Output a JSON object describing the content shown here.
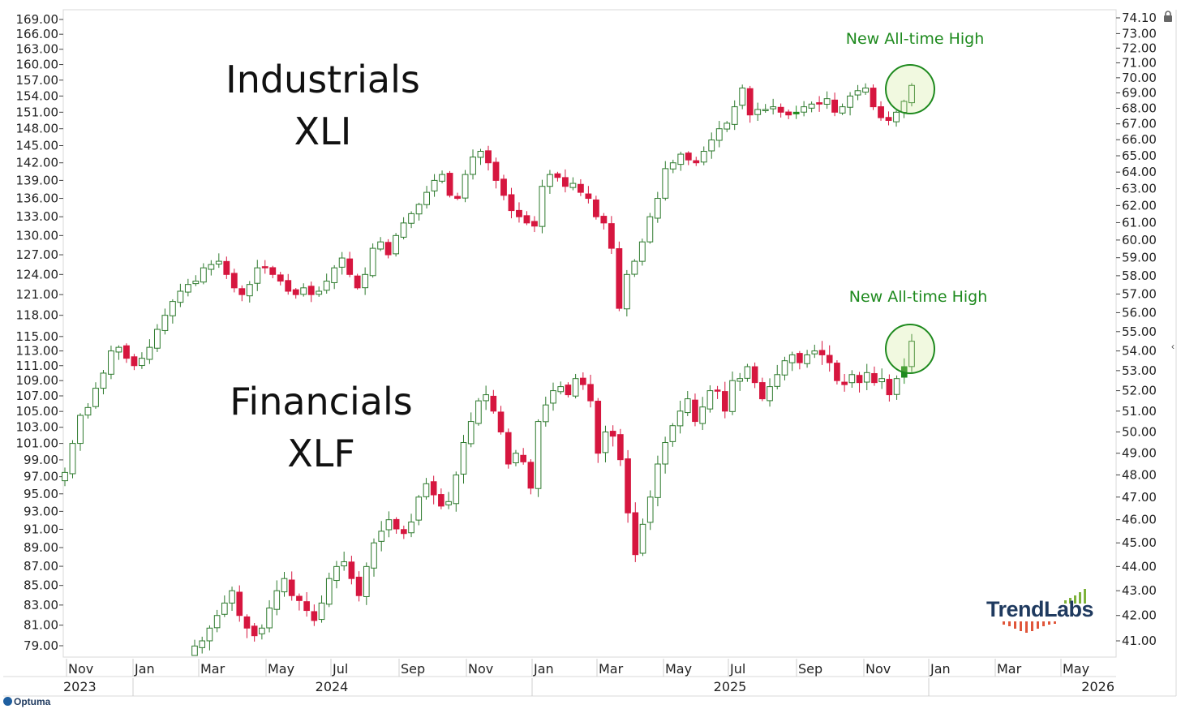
{
  "chart_data": {
    "type": "candlestick",
    "series": [
      {
        "symbol": "XLI",
        "label_lines": [
          "Industrials",
          "XLI"
        ],
        "axis": "left",
        "weekly_close_path": [
          97.5,
          101,
          104.5,
          105.5,
          108,
          110,
          113,
          113.5,
          112,
          111,
          112,
          113.5,
          116,
          118,
          120,
          121.5,
          122.5,
          123,
          125,
          125.5,
          126,
          124,
          122,
          121,
          122.5,
          125,
          125,
          124,
          123,
          121.5,
          121,
          122,
          121,
          121.5,
          123,
          125,
          126.5,
          124,
          122,
          124,
          128,
          129,
          127,
          130,
          132,
          133.5,
          135,
          137,
          139,
          140,
          136.5,
          136,
          140,
          143,
          144,
          142,
          139,
          136.5,
          134,
          133,
          132,
          131.5,
          138,
          140,
          139.5,
          138,
          138.5,
          137,
          136,
          133,
          132,
          128,
          119,
          124,
          126,
          129,
          133,
          136,
          141,
          142,
          143.5,
          142.5,
          142,
          144,
          146,
          148,
          149,
          152,
          155.5,
          150.5,
          151.5,
          151.5,
          152,
          151,
          150.5,
          151,
          152,
          152.5,
          152.5,
          153.5,
          151,
          152,
          154,
          155,
          155.5,
          152,
          150,
          149.5,
          151,
          153,
          156
        ],
        "up_color": "#ffffff",
        "down_color": "#d6163f",
        "special_color": "#1f8a1f"
      },
      {
        "symbol": "XLF",
        "label_lines": [
          "Financials",
          "XLF"
        ],
        "axis": "right",
        "weekly_close_path": [
          40.8,
          41,
          41.5,
          42,
          42.5,
          43,
          42,
          41.5,
          41.2,
          41.5,
          42.3,
          43,
          43.5,
          42.8,
          42.6,
          42.2,
          41.8,
          42.5,
          43.5,
          44,
          44.2,
          43.5,
          42.8,
          44,
          45,
          45.5,
          46,
          45.6,
          45.4,
          45.9,
          47,
          47.6,
          47.1,
          46.6,
          46.8,
          48,
          49.5,
          50.5,
          51.5,
          51.8,
          51,
          50,
          48.5,
          49,
          48.6,
          47.4,
          50.5,
          51.3,
          52,
          52.2,
          51.8,
          52.6,
          52.3,
          51.5,
          49,
          50,
          49.8,
          48.7,
          46.3,
          44.5,
          45.8,
          47,
          48.5,
          49.5,
          50.3,
          51,
          51.6,
          50.5,
          51.2,
          52,
          52,
          51,
          52.5,
          52.6,
          53.2,
          52.4,
          51.6,
          52.2,
          52.8,
          53.5,
          53.8,
          53.4,
          53.8,
          54,
          53.8,
          53.4,
          52.5,
          52.3,
          52.8,
          52.4,
          52.9,
          52.4,
          52.6,
          51.8,
          52.6,
          53.2,
          54.5
        ],
        "up_color": "#ffffff",
        "down_color": "#d6163f",
        "special_color": "#1f8a1f"
      }
    ],
    "left_axis": {
      "ticks": [
        "169.00",
        "166.00",
        "163.00",
        "160.00",
        "157.00",
        "154.00",
        "151.00",
        "148.00",
        "145.00",
        "142.00",
        "139.00",
        "136.00",
        "133.00",
        "130.00",
        "127.00",
        "124.00",
        "121.00",
        "118.00",
        "115.00",
        "113.00",
        "111.00",
        "109.00",
        "107.00",
        "105.00",
        "103.00",
        "101.00",
        "99.00",
        "97.00",
        "95.00",
        "93.00",
        "91.00",
        "89.00",
        "87.00",
        "85.00",
        "83.00",
        "81.00",
        "79.00"
      ],
      "scale": "log"
    },
    "right_axis": {
      "ticks": [
        "74.10",
        "73.00",
        "72.00",
        "71.00",
        "70.00",
        "69.00",
        "68.00",
        "67.00",
        "66.00",
        "65.00",
        "64.00",
        "63.00",
        "62.00",
        "61.00",
        "60.00",
        "59.00",
        "58.00",
        "57.00",
        "56.00",
        "55.00",
        "54.00",
        "53.00",
        "52.00",
        "51.00",
        "50.00",
        "49.00",
        "48.00",
        "47.00",
        "46.00",
        "45.00",
        "44.00",
        "43.00",
        "42.00",
        "41.00"
      ],
      "scale": "log"
    },
    "x_axis": {
      "months": [
        "Nov",
        "Jan",
        "Mar",
        "May",
        "Jul",
        "Sep",
        "Nov",
        "Jan",
        "Mar",
        "May",
        "Jul",
        "Sep",
        "Nov",
        "Jan",
        "Mar",
        "May"
      ],
      "years": [
        "2023",
        "2024",
        "2025",
        "2026"
      ]
    },
    "annotations": [
      "New All-time High",
      "New All-time High"
    ],
    "grid": false
  },
  "branding": {
    "logo_text": "TrendLabs",
    "footer_text": "Optuma"
  },
  "icons": {
    "lock": "lock-icon",
    "collapse": "chevron-left-icon"
  }
}
